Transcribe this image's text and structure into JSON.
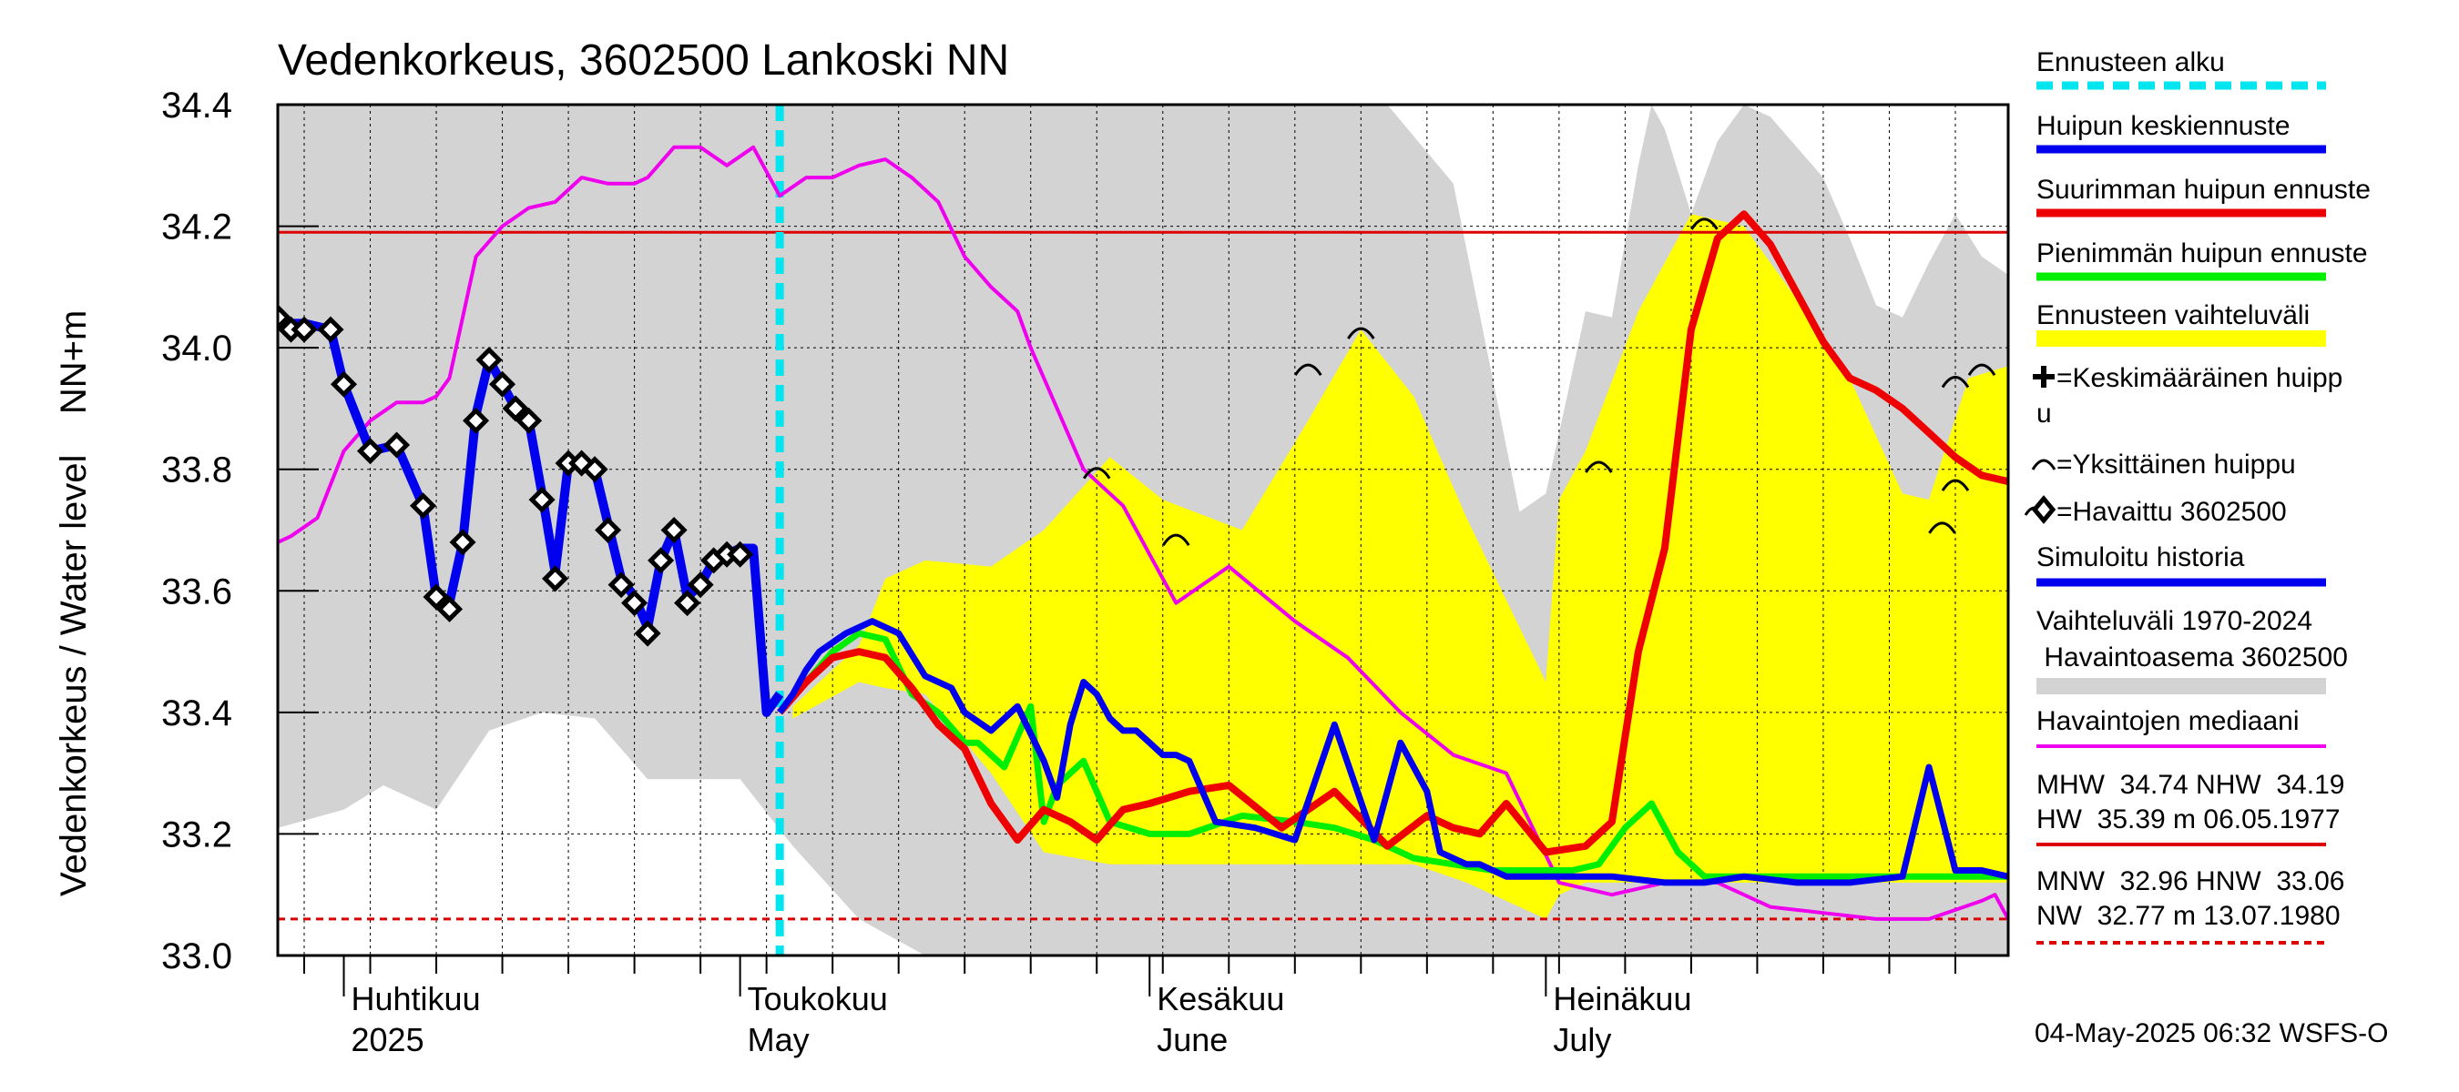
{
  "chart_data": {
    "type": "line",
    "title": "Vedenkorkeus, 3602500 Lankoski NN",
    "ylabel": "Vedenkorkeus / Water level    NN+m",
    "xlabel": "",
    "ylim": [
      33.0,
      34.4
    ],
    "xlim": [
      "2025-03-27",
      "2025-08-05"
    ],
    "grid": true,
    "legend_position": "right",
    "y_ticks": [
      "33.0",
      "33.2",
      "33.4",
      "33.6",
      "33.8",
      "34.0",
      "34.2",
      "34.4"
    ],
    "month_labels": [
      {
        "date": "2025-04-01",
        "fi": "Huhtikuu",
        "en": "2025"
      },
      {
        "date": "2025-05-01",
        "fi": "Toukokuu",
        "en": "May"
      },
      {
        "date": "2025-06-01",
        "fi": "Kesäkuu",
        "en": "June"
      },
      {
        "date": "2025-07-01",
        "fi": "Heinäkuu",
        "en": "July"
      }
    ],
    "forecast_start": "2025-05-04",
    "reference_lines": [
      {
        "name": "NHW",
        "value": 34.19,
        "color": "#dd0000",
        "style": "solid"
      },
      {
        "name": "HNW",
        "value": 33.06,
        "color": "#dd0000",
        "style": "dashed"
      }
    ],
    "history_range": {
      "x": [
        "2025-03-27",
        "2025-04-01",
        "2025-04-04",
        "2025-04-08",
        "2025-04-12",
        "2025-04-16",
        "2025-04-20",
        "2025-04-24",
        "2025-04-27",
        "2025-05-01",
        "2025-05-05",
        "2025-05-10",
        "2025-05-15",
        "2025-05-20",
        "2025-05-25",
        "2025-05-30",
        "2025-06-04",
        "2025-06-09",
        "2025-06-14",
        "2025-06-19",
        "2025-06-24",
        "2025-06-29",
        "2025-07-01",
        "2025-07-04",
        "2025-07-06",
        "2025-07-08",
        "2025-07-09",
        "2025-07-10",
        "2025-07-12",
        "2025-07-14",
        "2025-07-16",
        "2025-07-18",
        "2025-07-20",
        "2025-07-22",
        "2025-07-24",
        "2025-07-26",
        "2025-07-28",
        "2025-07-30",
        "2025-08-01",
        "2025-08-03",
        "2025-08-05"
      ],
      "upper": [
        34.4,
        34.4,
        34.4,
        34.4,
        34.4,
        34.4,
        34.4,
        34.4,
        34.4,
        34.4,
        34.4,
        34.4,
        34.4,
        34.4,
        34.4,
        34.4,
        34.4,
        34.4,
        34.4,
        34.4,
        34.27,
        33.73,
        33.76,
        34.06,
        34.05,
        34.3,
        34.4,
        34.36,
        34.22,
        34.34,
        34.4,
        34.38,
        34.33,
        34.28,
        34.18,
        34.07,
        34.05,
        34.14,
        34.22,
        34.15,
        34.12
      ],
      "lower": [
        33.21,
        33.24,
        33.28,
        33.24,
        33.37,
        33.4,
        33.39,
        33.29,
        33.29,
        33.29,
        33.18,
        33.06,
        33.0,
        33.0,
        33.0,
        33.0,
        33.0,
        33.0,
        33.0,
        33.0,
        33.0,
        33.0,
        33.0,
        33.0,
        33.0,
        33.0,
        33.0,
        33.0,
        33.0,
        33.0,
        33.0,
        33.0,
        33.0,
        33.0,
        33.0,
        33.0,
        33.0,
        33.0,
        33.0,
        33.0,
        33.0
      ]
    },
    "forecast_range": {
      "x": [
        "2025-05-05",
        "2025-05-10",
        "2025-05-12",
        "2025-05-15",
        "2025-05-20",
        "2025-05-24",
        "2025-05-29",
        "2025-06-02",
        "2025-06-08",
        "2025-06-13",
        "2025-06-17",
        "2025-06-21",
        "2025-06-25",
        "2025-06-29",
        "2025-07-01",
        "2025-07-02",
        "2025-07-04",
        "2025-07-08",
        "2025-07-12",
        "2025-07-16",
        "2025-07-20",
        "2025-07-24",
        "2025-07-28",
        "2025-07-30",
        "2025-08-02",
        "2025-08-05"
      ],
      "upper": [
        33.41,
        33.51,
        33.62,
        33.65,
        33.64,
        33.7,
        33.82,
        33.75,
        33.7,
        33.88,
        34.03,
        33.92,
        33.72,
        33.54,
        33.45,
        33.75,
        33.83,
        34.06,
        34.22,
        34.2,
        34.08,
        33.95,
        33.76,
        33.75,
        33.95,
        33.97
      ],
      "lower": [
        33.39,
        33.45,
        33.44,
        33.43,
        33.3,
        33.17,
        33.15,
        33.15,
        33.15,
        33.15,
        33.15,
        33.15,
        33.12,
        33.08,
        33.06,
        33.1,
        33.12,
        33.12,
        33.12,
        33.12,
        33.12,
        33.12,
        33.12,
        33.12,
        33.12,
        33.12
      ]
    },
    "series": [
      {
        "name": "Havaintojen mediaani",
        "color": "#ee00ee",
        "x": [
          "2025-03-27",
          "2025-03-28",
          "2025-03-30",
          "2025-04-01",
          "2025-04-03",
          "2025-04-05",
          "2025-04-07",
          "2025-04-08",
          "2025-04-09",
          "2025-04-11",
          "2025-04-13",
          "2025-04-15",
          "2025-04-17",
          "2025-04-19",
          "2025-04-21",
          "2025-04-23",
          "2025-04-24",
          "2025-04-26",
          "2025-04-28",
          "2025-04-30",
          "2025-05-02",
          "2025-05-04",
          "2025-05-06",
          "2025-05-08",
          "2025-05-10",
          "2025-05-12",
          "2025-05-14",
          "2025-05-16",
          "2025-05-18",
          "2025-05-20",
          "2025-05-22",
          "2025-05-23",
          "2025-05-25",
          "2025-05-27",
          "2025-05-30",
          "2025-06-03",
          "2025-06-07",
          "2025-06-12",
          "2025-06-16",
          "2025-06-20",
          "2025-06-24",
          "2025-06-28",
          "2025-07-02",
          "2025-07-06",
          "2025-07-10",
          "2025-07-14",
          "2025-07-18",
          "2025-07-22",
          "2025-07-26",
          "2025-07-30",
          "2025-08-03",
          "2025-08-04",
          "2025-08-05"
        ],
        "y": [
          33.68,
          33.69,
          33.72,
          33.83,
          33.88,
          33.91,
          33.91,
          33.92,
          33.95,
          34.15,
          34.2,
          34.23,
          34.24,
          34.28,
          34.27,
          34.27,
          34.28,
          34.33,
          34.33,
          34.3,
          34.33,
          34.25,
          34.28,
          34.28,
          34.3,
          34.31,
          34.28,
          34.24,
          34.15,
          34.1,
          34.06,
          34.0,
          33.9,
          33.8,
          33.74,
          33.58,
          33.64,
          33.55,
          33.49,
          33.4,
          33.33,
          33.3,
          33.12,
          33.1,
          33.12,
          33.12,
          33.08,
          33.07,
          33.06,
          33.06,
          33.09,
          33.1,
          33.06
        ]
      },
      {
        "name": "Simuloitu historia",
        "color": "#0000ee",
        "x": [
          "2025-03-27",
          "2025-03-28",
          "2025-03-29",
          "2025-03-31",
          "2025-04-01",
          "2025-04-03",
          "2025-04-05",
          "2025-04-07",
          "2025-04-08",
          "2025-04-09",
          "2025-04-10",
          "2025-04-11",
          "2025-04-12",
          "2025-04-13",
          "2025-04-14",
          "2025-04-15",
          "2025-04-16",
          "2025-04-17",
          "2025-04-18",
          "2025-04-19",
          "2025-04-20",
          "2025-04-21",
          "2025-04-22",
          "2025-04-23",
          "2025-04-24",
          "2025-04-25",
          "2025-04-26",
          "2025-04-27",
          "2025-04-28",
          "2025-04-29",
          "2025-04-30",
          "2025-05-01",
          "2025-05-02",
          "2025-05-03",
          "2025-05-04"
        ],
        "y": [
          34.05,
          34.04,
          34.04,
          34.03,
          33.94,
          33.83,
          33.84,
          33.74,
          33.59,
          33.58,
          33.68,
          33.89,
          33.98,
          33.94,
          33.9,
          33.88,
          33.76,
          33.63,
          33.81,
          33.81,
          33.8,
          33.71,
          33.62,
          33.59,
          33.54,
          33.65,
          33.7,
          33.59,
          33.61,
          33.65,
          33.66,
          33.67,
          33.67,
          33.4,
          33.43
        ]
      },
      {
        "name": "Havaittu 3602500",
        "color": "#000000",
        "x": [
          "2025-03-27",
          "2025-03-28",
          "2025-03-29",
          "2025-03-31",
          "2025-04-01",
          "2025-04-03",
          "2025-04-05",
          "2025-04-07",
          "2025-04-08",
          "2025-04-09",
          "2025-04-10",
          "2025-04-11",
          "2025-04-12",
          "2025-04-13",
          "2025-04-14",
          "2025-04-15",
          "2025-04-16",
          "2025-04-17",
          "2025-04-18",
          "2025-04-19",
          "2025-04-20",
          "2025-04-21",
          "2025-04-22",
          "2025-04-23",
          "2025-04-24",
          "2025-04-25",
          "2025-04-26",
          "2025-04-27",
          "2025-04-28",
          "2025-04-29",
          "2025-04-30",
          "2025-05-01"
        ],
        "y": [
          34.05,
          34.03,
          34.03,
          34.03,
          33.94,
          33.83,
          33.84,
          33.74,
          33.59,
          33.57,
          33.68,
          33.88,
          33.98,
          33.94,
          33.9,
          33.88,
          33.75,
          33.62,
          33.81,
          33.81,
          33.8,
          33.7,
          33.61,
          33.58,
          33.53,
          33.65,
          33.7,
          33.58,
          33.61,
          33.65,
          33.66,
          33.66
        ]
      },
      {
        "name": "Huipun keskiennuste",
        "color": "#0000ee",
        "x": [
          "2025-05-04",
          "2025-05-05",
          "2025-05-06",
          "2025-05-07",
          "2025-05-09",
          "2025-05-11",
          "2025-05-13",
          "2025-05-15",
          "2025-05-17",
          "2025-05-18",
          "2025-05-20",
          "2025-05-22",
          "2025-05-24",
          "2025-05-25",
          "2025-05-26",
          "2025-05-27",
          "2025-05-28",
          "2025-05-29",
          "2025-05-30",
          "2025-05-31",
          "2025-06-01",
          "2025-06-02",
          "2025-06-03",
          "2025-06-04",
          "2025-06-06",
          "2025-06-09",
          "2025-06-12",
          "2025-06-15",
          "2025-06-18",
          "2025-06-20",
          "2025-06-22",
          "2025-06-23",
          "2025-06-25",
          "2025-06-26",
          "2025-06-27",
          "2025-06-28",
          "2025-06-30",
          "2025-07-03",
          "2025-07-06",
          "2025-07-10",
          "2025-07-13",
          "2025-07-16",
          "2025-07-20",
          "2025-07-24",
          "2025-07-28",
          "2025-07-30",
          "2025-08-01",
          "2025-08-03",
          "2025-08-05"
        ],
        "y": [
          33.4,
          33.43,
          33.47,
          33.5,
          33.53,
          33.55,
          33.53,
          33.46,
          33.44,
          33.4,
          33.37,
          33.41,
          33.32,
          33.26,
          33.38,
          33.45,
          33.43,
          33.39,
          33.37,
          33.37,
          33.35,
          33.33,
          33.33,
          33.32,
          33.22,
          33.21,
          33.19,
          33.38,
          33.19,
          33.35,
          33.27,
          33.17,
          33.15,
          33.15,
          33.14,
          33.13,
          33.13,
          33.13,
          33.13,
          33.12,
          33.12,
          33.13,
          33.12,
          33.12,
          33.13,
          33.31,
          33.14,
          33.14,
          33.13
        ]
      },
      {
        "name": "Pienimmän huipun ennuste",
        "color": "#00ee00",
        "x": [
          "2025-05-04",
          "2025-05-06",
          "2025-05-08",
          "2025-05-10",
          "2025-05-12",
          "2025-05-14",
          "2025-05-16",
          "2025-05-18",
          "2025-05-19",
          "2025-05-21",
          "2025-05-23",
          "2025-05-24",
          "2025-05-25",
          "2025-05-27",
          "2025-05-29",
          "2025-06-01",
          "2025-06-04",
          "2025-06-08",
          "2025-06-12",
          "2025-06-15",
          "2025-06-18",
          "2025-06-21",
          "2025-06-24",
          "2025-06-27",
          "2025-06-30",
          "2025-07-03",
          "2025-07-05",
          "2025-07-07",
          "2025-07-09",
          "2025-07-11",
          "2025-07-13",
          "2025-07-16",
          "2025-07-20",
          "2025-07-24",
          "2025-07-28",
          "2025-08-01",
          "2025-08-05"
        ],
        "y": [
          33.4,
          33.45,
          33.5,
          33.53,
          33.52,
          33.43,
          33.4,
          33.35,
          33.35,
          33.31,
          33.41,
          33.22,
          33.28,
          33.32,
          33.22,
          33.2,
          33.2,
          33.23,
          33.22,
          33.21,
          33.19,
          33.16,
          33.15,
          33.14,
          33.14,
          33.14,
          33.15,
          33.21,
          33.25,
          33.17,
          33.13,
          33.13,
          33.13,
          33.13,
          33.13,
          33.13,
          33.13
        ]
      },
      {
        "name": "Suurimman huipun ennuste",
        "color": "#ee0000",
        "x": [
          "2025-05-04",
          "2025-05-06",
          "2025-05-08",
          "2025-05-10",
          "2025-05-12",
          "2025-05-14",
          "2025-05-16",
          "2025-05-18",
          "2025-05-20",
          "2025-05-22",
          "2025-05-24",
          "2025-05-26",
          "2025-05-28",
          "2025-05-30",
          "2025-06-01",
          "2025-06-04",
          "2025-06-07",
          "2025-06-11",
          "2025-06-15",
          "2025-06-19",
          "2025-06-22",
          "2025-06-24",
          "2025-06-26",
          "2025-06-28",
          "2025-07-01",
          "2025-07-04",
          "2025-07-05",
          "2025-07-06",
          "2025-07-08",
          "2025-07-10",
          "2025-07-12",
          "2025-07-14",
          "2025-07-16",
          "2025-07-18",
          "2025-07-20",
          "2025-07-22",
          "2025-07-24",
          "2025-07-26",
          "2025-07-28",
          "2025-07-30",
          "2025-08-01",
          "2025-08-03",
          "2025-08-05"
        ],
        "y": [
          33.4,
          33.45,
          33.49,
          33.5,
          33.49,
          33.44,
          33.38,
          33.34,
          33.25,
          33.19,
          33.24,
          33.22,
          33.19,
          33.24,
          33.25,
          33.27,
          33.28,
          33.21,
          33.27,
          33.18,
          33.23,
          33.21,
          33.2,
          33.25,
          33.17,
          33.18,
          33.2,
          33.22,
          33.5,
          33.67,
          34.03,
          34.18,
          34.22,
          34.17,
          34.09,
          34.01,
          33.95,
          33.93,
          33.9,
          33.86,
          33.82,
          33.79,
          33.78
        ]
      }
    ],
    "peaks": [
      {
        "x": "2025-05-28",
        "y": 33.8
      },
      {
        "x": "2025-06-03",
        "y": 33.69
      },
      {
        "x": "2025-06-13",
        "y": 33.97
      },
      {
        "x": "2025-06-17",
        "y": 34.03
      },
      {
        "x": "2025-07-05",
        "y": 33.81
      },
      {
        "x": "2025-07-13",
        "y": 34.21
      },
      {
        "x": "2025-07-31",
        "y": 33.71
      },
      {
        "x": "2025-08-01",
        "y": 33.78
      },
      {
        "x": "2025-08-01",
        "y": 33.95
      },
      {
        "x": "2025-08-03",
        "y": 33.97
      }
    ]
  },
  "legend": {
    "items": [
      {
        "key": "forecast_start",
        "label": "Ennusteen alku",
        "color": "#00e5ee"
      },
      {
        "key": "mean_peak",
        "label": "Huipun keskiennuste",
        "color": "#0000ee"
      },
      {
        "key": "max_peak",
        "label": "Suurimman huipun ennuste",
        "color": "#ee0000"
      },
      {
        "key": "min_peak",
        "label": "Pienimmän huipun ennuste",
        "color": "#00ee00"
      },
      {
        "key": "forecast_range",
        "label": "Ennusteen vaihteluväli",
        "color": "#ffff00"
      }
    ],
    "mean_peak_symbol_label_1": "=Keskimääräinen huipp",
    "mean_peak_symbol_label_2": "u",
    "single_peak_symbol_label": "=Yksittäinen huippu",
    "observed_symbol_label": "=Havaittu 3602500",
    "simulated_label": "Simuloitu historia",
    "simulated_color": "#0000ee",
    "range_label_1": "Vaihteluväli 1970-2024",
    "range_label_2": " Havaintoasema 3602500",
    "range_color": "#d3d3d3",
    "median_label": "Havaintojen mediaani",
    "median_color": "#ee00ee",
    "stats_high_1": "MHW  34.74 NHW  34.19",
    "stats_high_2": "HW  35.39 m 06.05.1977",
    "stats_low_1": "MNW  32.96 HNW  33.06",
    "stats_low_2": "NW  32.77 m 13.07.1980"
  },
  "footer": "04-May-2025 06:32 WSFS-O"
}
